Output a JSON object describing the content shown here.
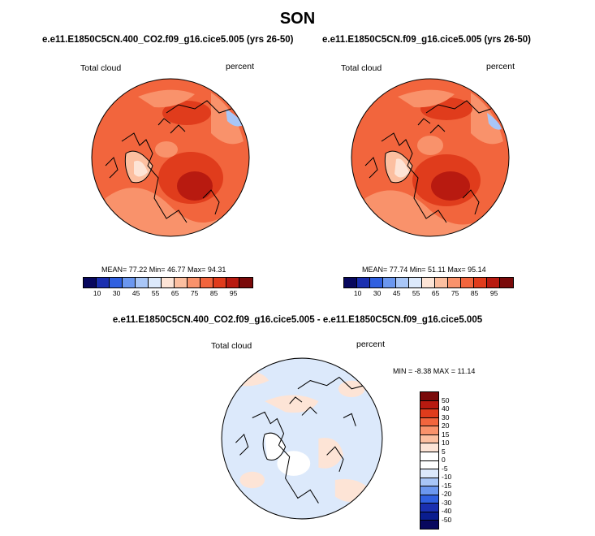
{
  "figure": {
    "title": "SON"
  },
  "panels": [
    {
      "id": "left",
      "title": "e.e11.E1850C5CN.400_CO2.f09_g16.cice5.005 (yrs 26-50)",
      "variable": "Total cloud",
      "units": "percent",
      "stats": "MEAN= 77.22  Min= 46.77  Max= 94.31",
      "colorbar": {
        "labels": [
          "10",
          "30",
          "45",
          "55",
          "65",
          "75",
          "85",
          "95"
        ],
        "colors": [
          "#08085e",
          "#1a2fb0",
          "#3060e0",
          "#6b97ef",
          "#a8c6f7",
          "#dce9fb",
          "#fde4d6",
          "#fcbfa0",
          "#f9926b",
          "#f2653d",
          "#e03c1c",
          "#b81a10",
          "#7a0a0a"
        ]
      }
    },
    {
      "id": "right",
      "title": "e.e11.E1850C5CN.f09_g16.cice5.005 (yrs 26-50)",
      "variable": "Total cloud",
      "units": "percent",
      "stats": "MEAN= 77.74  Min= 51.11  Max= 95.14",
      "colorbar": {
        "labels": [
          "10",
          "30",
          "45",
          "55",
          "65",
          "75",
          "85",
          "95"
        ],
        "colors": [
          "#08085e",
          "#1a2fb0",
          "#3060e0",
          "#6b97ef",
          "#a8c6f7",
          "#dce9fb",
          "#fde4d6",
          "#fcbfa0",
          "#f9926b",
          "#f2653d",
          "#e03c1c",
          "#b81a10",
          "#7a0a0a"
        ]
      }
    },
    {
      "id": "diff",
      "title": "e.e11.E1850C5CN.400_CO2.f09_g16.cice5.005 - e.e11.E1850C5CN.f09_g16.cice5.005",
      "variable": "Total cloud",
      "units": "percent",
      "stats": "MIN = -8.38 MAX = 11.14",
      "colorbar": {
        "labels": [
          "50",
          "40",
          "30",
          "20",
          "15",
          "10",
          "5",
          "0",
          "-5",
          "-10",
          "-15",
          "-20",
          "-30",
          "-40",
          "-50"
        ],
        "colors": [
          "#7a0a0a",
          "#b81a10",
          "#e03c1c",
          "#f2653d",
          "#f9926b",
          "#fcbfa0",
          "#fde4d6",
          "#ffffff",
          "#ffffff",
          "#dce9fb",
          "#a8c6f7",
          "#6b97ef",
          "#3060e0",
          "#1a2fb0",
          "#0a1d8f",
          "#08085e"
        ]
      }
    }
  ]
}
